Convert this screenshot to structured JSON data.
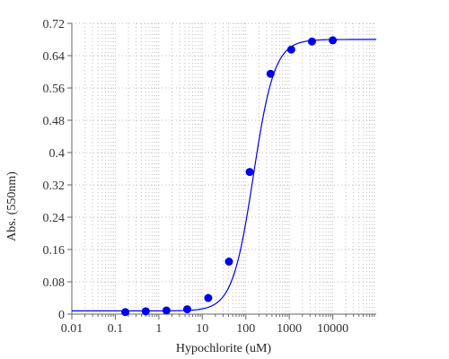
{
  "chart_data": {
    "type": "scatter",
    "title": "",
    "xlabel": "Hypochlorite (uM)",
    "ylabel": "Abs. (550nm)",
    "xscale": "log",
    "xlim": [
      0.01,
      100000
    ],
    "ylim": [
      0,
      0.72
    ],
    "xticks": [
      0.01,
      0.1,
      1,
      10,
      100,
      1000,
      10000
    ],
    "xtick_labels": [
      "0.01",
      "0.1",
      "1",
      "10",
      "100",
      "1000",
      "10000"
    ],
    "yticks": [
      0,
      0.08,
      0.16,
      0.24,
      0.32,
      0.4,
      0.48,
      0.56,
      0.64,
      0.72
    ],
    "ytick_labels": [
      "0",
      "0.08",
      "0.16",
      "0.24",
      "0.32",
      "0.4",
      "0.48",
      "0.56",
      "0.64",
      "0.72"
    ],
    "grid": true,
    "legend": "none",
    "color": "#0000ee",
    "points": [
      {
        "x": 0.17,
        "y": 0.005
      },
      {
        "x": 0.5,
        "y": 0.007
      },
      {
        "x": 1.5,
        "y": 0.009
      },
      {
        "x": 4.5,
        "y": 0.012
      },
      {
        "x": 13.7,
        "y": 0.04
      },
      {
        "x": 41,
        "y": 0.13
      },
      {
        "x": 123,
        "y": 0.352
      },
      {
        "x": 370,
        "y": 0.595
      },
      {
        "x": 1110,
        "y": 0.655
      },
      {
        "x": 3330,
        "y": 0.675
      },
      {
        "x": 10000,
        "y": 0.678
      }
    ],
    "fit_curve": {
      "bottom": 0.008,
      "top": 0.68,
      "ec50": 150,
      "hill": 1.8
    }
  }
}
